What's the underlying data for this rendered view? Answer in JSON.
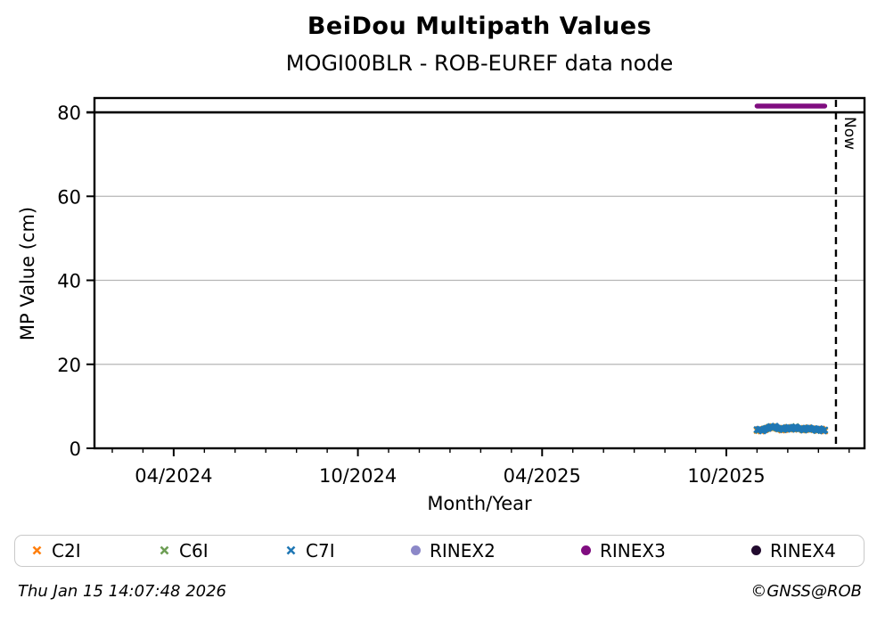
{
  "figure": {
    "title": "BeiDou Multipath Values",
    "subtitle": "MOGI00BLR - ROB-EUREF data node",
    "timestamp": "Thu Jan 15 14:07:48 2026",
    "credit": "©GNSS@ROB"
  },
  "chart_data": {
    "type": "scatter",
    "title": "BeiDou Multipath Values",
    "subtitle": "MOGI00BLR - ROB-EUREF data node",
    "x_axis": {
      "label": "Month/Year",
      "unit": "months since 2024-01-01",
      "lim": [
        0.42,
        25.5
      ],
      "ticks": [
        {
          "t": 3,
          "label": "04/2024"
        },
        {
          "t": 9,
          "label": "10/2024"
        },
        {
          "t": 15,
          "label": "04/2025"
        },
        {
          "t": 21,
          "label": "10/2025"
        }
      ],
      "minor_ticks": [
        1,
        2,
        4,
        5,
        6,
        7,
        8,
        10,
        11,
        12,
        13,
        14,
        16,
        17,
        18,
        19,
        20,
        22,
        23,
        24,
        25
      ]
    },
    "y_axis": {
      "label": "MP Value (cm)",
      "lim": [
        0,
        83.4
      ],
      "ticks": [
        0,
        20,
        40,
        60,
        80
      ]
    },
    "grid": {
      "on": true,
      "color": "#b6b6b6",
      "gridline_ticks": [
        20,
        40,
        60
      ]
    },
    "hline": {
      "y": 80,
      "color": "#000000"
    },
    "now_line": {
      "t": 24.57,
      "label": "Now",
      "style": "dashed",
      "color": "#000000"
    },
    "legend_position": "bottom",
    "series": [
      {
        "name": "C2I",
        "marker": "x",
        "color": "#ff7f0e",
        "t_start": 22.0,
        "t_step": 0.045,
        "values": [
          4.2,
          4.5,
          4.3,
          4.1,
          4.4,
          4.6,
          4.4,
          4.7,
          4.9,
          4.8,
          5.0,
          5.2,
          4.9,
          5.1,
          4.8,
          4.6,
          4.8,
          4.5,
          4.3,
          4.6,
          4.4,
          4.7,
          5.0,
          4.8,
          4.5,
          4.7,
          4.6,
          4.8,
          5.0,
          4.7,
          4.5,
          4.8,
          4.6,
          4.3,
          4.5,
          4.4,
          4.6,
          4.9,
          4.7,
          4.5,
          4.7,
          4.4,
          4.6,
          4.3,
          4.2,
          4.5,
          4.3,
          4.6,
          4.3,
          4.1
        ]
      },
      {
        "name": "C6I",
        "marker": "x",
        "color": "#6d9e54",
        "t_start": 22.0,
        "t_step": 0.045,
        "values": [
          4.4,
          4.2,
          4.5,
          4.3,
          4.2,
          4.4,
          4.7,
          4.6,
          4.8,
          5.1,
          4.9,
          5.1,
          5.0,
          5.2,
          4.9,
          4.7,
          4.7,
          4.6,
          4.5,
          4.5,
          4.6,
          4.8,
          4.9,
          4.9,
          4.6,
          4.6,
          4.7,
          4.9,
          5.2,
          4.8,
          4.6,
          4.7,
          4.7,
          4.4,
          4.4,
          4.5,
          4.7,
          4.8,
          4.8,
          4.6,
          4.6,
          4.5,
          4.5,
          4.2,
          4.3,
          4.6,
          4.4,
          4.4,
          4.2,
          4.3
        ]
      },
      {
        "name": "C7I",
        "marker": "x",
        "color": "#1f77b4",
        "t_start": 22.0,
        "t_step": 0.045,
        "values": [
          4.5,
          4.3,
          4.6,
          4.4,
          4.1,
          4.3,
          4.6,
          4.8,
          4.7,
          5.0,
          5.2,
          4.9,
          5.1,
          5.3,
          5.0,
          4.8,
          4.6,
          4.8,
          4.6,
          4.4,
          4.7,
          4.9,
          4.8,
          5.0,
          4.7,
          4.5,
          4.8,
          5.0,
          5.1,
          4.9,
          4.7,
          4.6,
          4.8,
          4.5,
          4.3,
          4.6,
          4.8,
          4.7,
          4.9,
          4.7,
          4.5,
          4.7,
          4.4,
          4.2,
          4.5,
          4.7,
          4.6,
          4.3,
          4.1,
          4.4
        ]
      },
      {
        "name": "RINEX2",
        "marker": "circle",
        "color": "#8c88c8",
        "values": []
      },
      {
        "name": "RINEX3",
        "marker": "circle",
        "color": "#800d80",
        "segment": {
          "t_start": 22.0,
          "t_end": 24.205,
          "value": 81.5
        }
      },
      {
        "name": "RINEX4",
        "marker": "circle",
        "color": "#220a2e",
        "values": []
      }
    ]
  }
}
